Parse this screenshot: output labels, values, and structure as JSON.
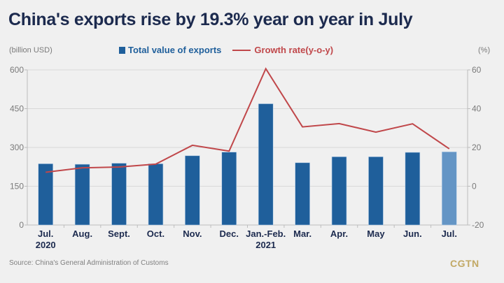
{
  "title": "China's exports rise by 19.3% year on year in July",
  "left_unit": "(billion USD)",
  "right_unit": "(%)",
  "legend": {
    "bars": "Total value of exports",
    "line": "Growth rate(y-o-y)"
  },
  "source": "Source: China's General Administration of Customs",
  "logo": "CGTN",
  "colors": {
    "bar": "#1f5f9b",
    "bar_highlight": "#6495c5",
    "line": "#c0474a",
    "title": "#1c2a4e",
    "logo": "#c2a965"
  },
  "chart_data": {
    "type": "bar",
    "title": "China's exports rise by 19.3% year on year in July",
    "categories": [
      "Jul.",
      "Aug.",
      "Sept.",
      "Oct.",
      "Nov.",
      "Dec.",
      "Jan.-Feb.",
      "Mar.",
      "Apr.",
      "May",
      "Jun.",
      "Jul."
    ],
    "category_sublabels": [
      "2020",
      "",
      "",
      "",
      "",
      "",
      "2021",
      "",
      "",
      "",
      "",
      ""
    ],
    "series": [
      {
        "name": "Total value of exports",
        "type": "bar",
        "axis": "left",
        "values": [
          237,
          235,
          239,
          237,
          268,
          282,
          469,
          241,
          264,
          264,
          281,
          283
        ]
      },
      {
        "name": "Growth rate(y-o-y)",
        "type": "line",
        "axis": "right",
        "values": [
          7.2,
          9.5,
          9.9,
          11.4,
          21.1,
          18.1,
          60.6,
          30.6,
          32.3,
          27.9,
          32.2,
          19.3
        ]
      }
    ],
    "ylabel": "(billion USD)",
    "ylabel_right": "(%)",
    "ylim": [
      0,
      600
    ],
    "yticks": [
      0,
      150,
      300,
      450,
      600
    ],
    "ylim_right": [
      -20,
      60
    ],
    "yticks_right": [
      -20,
      0,
      20,
      40,
      60
    ],
    "highlight_last_bar": true,
    "grid": true,
    "legend_position": "top-center"
  }
}
